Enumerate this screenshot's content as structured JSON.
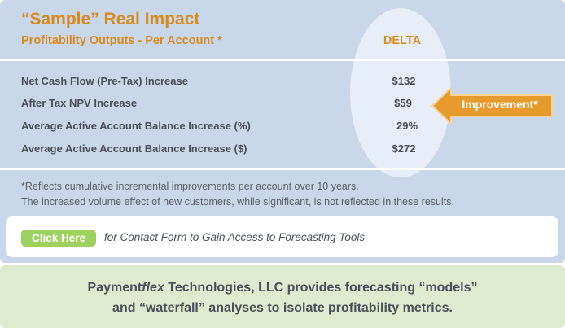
{
  "header": {
    "title": "“Sample” Real Impact",
    "subtitle": "Profitability Outputs - Per Account *",
    "column_label": "DELTA"
  },
  "rows": [
    {
      "label": "Net Cash Flow (Pre-Tax) Increase",
      "value": "$132"
    },
    {
      "label": "After Tax NPV Increase",
      "value": "$59"
    },
    {
      "label": "Average Active Account Balance Increase (%)",
      "value": "29%"
    },
    {
      "label": "Average Active Account Balance Increase ($)",
      "value": "$272"
    }
  ],
  "callout": {
    "label": "Improvement*"
  },
  "notes": {
    "line1": "*Reflects cumulative incremental improvements per account over 10 years.",
    "line2": "The increased volume effect of new customers, while significant, is not reflected in these results."
  },
  "cta": {
    "button_label": "Click Here",
    "text": "for Contact Form to Gain Access to Forecasting Tools"
  },
  "footer": {
    "line1_pre": "Payment",
    "line1_em": "flex",
    "line1_post": " Technologies, LLC provides forecasting “models”",
    "line2": "and “waterfall” analyses to isolate profitability metrics."
  },
  "colors": {
    "accent": "#d98a1f",
    "panel_blue": "#c9d7ea",
    "panel_green": "#deebcf",
    "button_green": "#9fd15e",
    "text": "#4a4f59"
  }
}
